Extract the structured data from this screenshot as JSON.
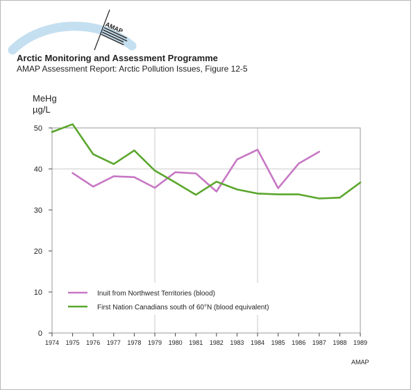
{
  "header": {
    "title": "Arctic Monitoring and Assessment Programme",
    "subtitle": "AMAP Assessment Report: Arctic Pollution Issues, Figure 12-5",
    "logo_text": "AMAP"
  },
  "footer": {
    "credit": "AMAP"
  },
  "colors": {
    "inuit": "#c777c4",
    "first_nation": "#5aa62c",
    "grid": "#c8c8c8",
    "logo_arc": "#c4dff0"
  },
  "chart_data": {
    "type": "line",
    "title": "",
    "xlabel": "",
    "ylabel_line1": "MeHg",
    "ylabel_line2": "µg/L",
    "xlim": [
      1974,
      1989
    ],
    "ylim": [
      0,
      50
    ],
    "x_ticks": [
      "1974",
      "1975",
      "1976",
      "1977",
      "1978",
      "1979",
      "1980",
      "1981",
      "1982",
      "1983",
      "1984",
      "1985",
      "1986",
      "1987",
      "1988",
      "1989"
    ],
    "y_ticks": [
      "0",
      "10",
      "20",
      "30",
      "40",
      "50"
    ],
    "grid": "vertical lines at 1979 and 1984, horizontal line at 40",
    "legend_position": "bottom-left",
    "series": [
      {
        "name": "Inuit from Northwest Territories (blood)",
        "color": "#c777c4",
        "x": [
          1975,
          1976,
          1977,
          1978,
          1979,
          1980,
          1981,
          1982,
          1983,
          1984,
          1985,
          1986,
          1987
        ],
        "y": [
          39,
          35.7,
          38.2,
          38,
          35.4,
          39.2,
          38.9,
          34.5,
          42.3,
          44.7,
          35.3,
          41.3,
          44.2
        ]
      },
      {
        "name": "First Nation Canadians south of 60°N (blood equivalent)",
        "color": "#5aa62c",
        "x": [
          1974,
          1975,
          1976,
          1977,
          1978,
          1979,
          1980,
          1981,
          1982,
          1983,
          1984,
          1985,
          1986,
          1987,
          1988,
          1989
        ],
        "y": [
          49,
          50.9,
          43.6,
          41.2,
          44.5,
          39.6,
          36.7,
          33.7,
          36.9,
          35,
          34,
          33.8,
          33.8,
          32.8,
          33,
          36.7
        ]
      }
    ]
  }
}
